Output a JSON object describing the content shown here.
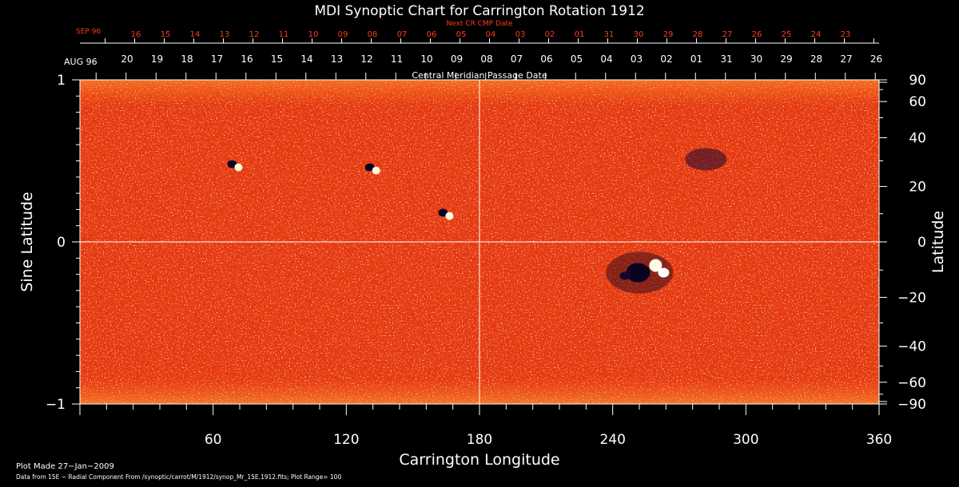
{
  "chart_data": {
    "type": "heatmap",
    "title": "MDI Synoptic Chart for Carrington Rotation 1912",
    "xlabel": "Carrington Longitude",
    "ylabel_left": "Sine Latitude",
    "ylabel_right": "Latitude",
    "xlim": [
      0,
      360
    ],
    "ylim": [
      -1,
      1
    ],
    "x_ticks": [
      60,
      120,
      180,
      240,
      300,
      360
    ],
    "y_ticks_left": [
      {
        "value": 1,
        "label": "1"
      },
      {
        "value": 0,
        "label": "0"
      },
      {
        "value": -1,
        "label": "−1"
      }
    ],
    "y_ticks_right": [
      90,
      60,
      40,
      20,
      0,
      -20,
      -40,
      -60,
      -90
    ],
    "top_axis_red": {
      "title": "Next CR CMP Date",
      "start_label": "SEP 96",
      "labels": [
        "16",
        "15",
        "14",
        "13",
        "12",
        "11",
        "10",
        "09",
        "08",
        "07",
        "06",
        "05",
        "04",
        "03",
        "02",
        "01",
        "31",
        "30",
        "29",
        "28",
        "27",
        "26",
        "25",
        "24",
        "23"
      ]
    },
    "top_axis_white": {
      "title": "Central Meridian Passage Date",
      "start_label": "AUG 96",
      "labels": [
        "20",
        "19",
        "18",
        "17",
        "16",
        "15",
        "14",
        "13",
        "12",
        "11",
        "10",
        "09",
        "08",
        "07",
        "06",
        "05",
        "04",
        "03",
        "02",
        "01",
        "31",
        "30",
        "29",
        "28",
        "27",
        "26"
      ]
    },
    "features": [
      {
        "type": "bipolar",
        "lon": 70,
        "sinlat": 0.47
      },
      {
        "type": "bipolar",
        "lon": 132,
        "sinlat": 0.45
      },
      {
        "type": "bipolar",
        "lon": 165,
        "sinlat": 0.17
      },
      {
        "type": "active-region",
        "lon": 255,
        "sinlat": -0.17
      },
      {
        "type": "negative-plage",
        "lon": 282,
        "sinlat": 0.51
      }
    ],
    "colors": {
      "background": "#000000",
      "field": "#e8380e",
      "positive": "#ffffff",
      "negative": "#1a0a3a",
      "axis": "#ffffff",
      "secondary_axis": "#ff3a1a"
    }
  },
  "footer": {
    "plot_made": "Plot Made 27−Jan−2009",
    "data_from": "Data from 15E − Radial Component From /synoptic/carrot/M/1912/synop_Mr_15E.1912.fits; Plot Range=  100"
  }
}
